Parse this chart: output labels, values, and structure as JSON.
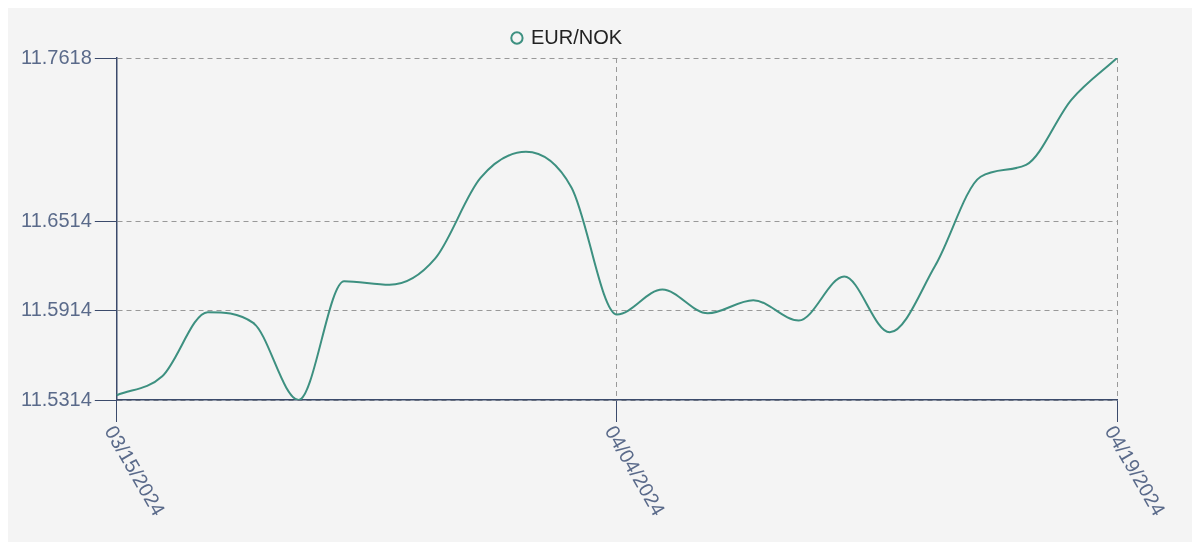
{
  "chart_data": {
    "type": "line",
    "categories": [
      "03/15/2024",
      null,
      null,
      null,
      null,
      null,
      null,
      null,
      null,
      null,
      null,
      "04/04/2024",
      null,
      null,
      null,
      null,
      null,
      null,
      null,
      null,
      null,
      null,
      "04/19/2024"
    ],
    "series": [
      {
        "name": "EUR/NOK",
        "color": "#3d9080",
        "values": [
          11.5346,
          11.5474,
          11.5906,
          11.5834,
          11.5314,
          11.6114,
          11.609,
          11.6266,
          11.681,
          11.6986,
          11.6746,
          11.589,
          11.6058,
          11.5898,
          11.5986,
          11.585,
          11.6146,
          11.577,
          11.6218,
          11.6818,
          11.6898,
          11.7338,
          11.7618
        ]
      }
    ],
    "ylim": [
      11.5314,
      11.7618
    ],
    "yticks": [
      11.5314,
      11.5914,
      11.6514,
      11.7618
    ],
    "grid": true,
    "legend": "top",
    "marker": "none",
    "line_style": "solid"
  }
}
